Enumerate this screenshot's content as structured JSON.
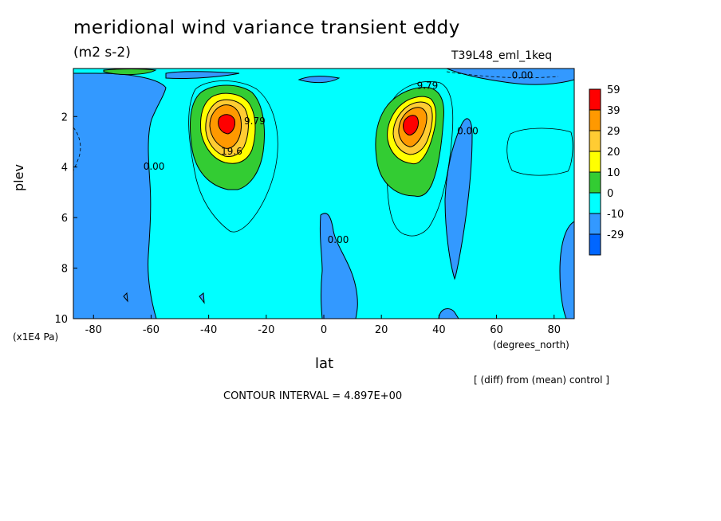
{
  "header": {
    "title": "meridional wind variance transient eddy",
    "units": "(m2 s-2)",
    "run_id": "T39L48_eml_1keq"
  },
  "footer": {
    "diff_note": "[ (diff) from (mean) control ]",
    "contour_interval": "CONTOUR INTERVAL = 4.897E+00"
  },
  "chart_data": {
    "type": "heatmap",
    "title": "meridional wind variance transient eddy",
    "subtitle": "(m2 s-2)",
    "xlabel": "lat",
    "xunit": "(degrees_north)",
    "ylabel": "plev",
    "yunit": "(x1E4 Pa)",
    "xlim": [
      -87,
      87
    ],
    "ylim": [
      10,
      0.1
    ],
    "xticks": [
      -80,
      -60,
      -40,
      -20,
      0,
      20,
      40,
      60,
      80
    ],
    "yticks": [
      2,
      4,
      6,
      8,
      10
    ],
    "xtick_labels": [
      "-80",
      "-60",
      "-40",
      "-20",
      "0",
      "20",
      "40",
      "60",
      "80"
    ],
    "ytick_labels": [
      "2",
      "4",
      "6",
      "8",
      "10"
    ],
    "contour_interval": 4.897,
    "colorbar": {
      "labels": [
        "59",
        "39",
        "29",
        "20",
        "10",
        "0",
        "-10",
        "-29"
      ],
      "colors": [
        "#ff0000",
        "#ff9900",
        "#ffcc33",
        "#ffff00",
        "#33cc33",
        "#00ffff",
        "#3399ff",
        "#0066ff"
      ]
    },
    "contour_labels": [
      {
        "text": "9.79",
        "x": -24,
        "y": 2.3
      },
      {
        "text": "19.6",
        "x": -32,
        "y": 3.5
      },
      {
        "text": "9.79",
        "x": 36,
        "y": 0.9
      },
      {
        "text": "0.00",
        "x": 69,
        "y": 0.5
      },
      {
        "text": "0.00",
        "x": 50,
        "y": 2.7
      },
      {
        "text": "0.00",
        "x": -59,
        "y": 4.1
      },
      {
        "text": "0.00",
        "x": 5,
        "y": 7.0
      }
    ],
    "regions": [
      {
        "name": "south-maximum",
        "x": -33,
        "y": 2.3,
        "peak": 59
      },
      {
        "name": "north-maximum",
        "x": 30,
        "y": 2.3,
        "peak": 59
      }
    ]
  },
  "colors": {
    "cyan": "#00ffff",
    "blue": "#3399ff",
    "green": "#33cc33",
    "yellow": "#ffff00",
    "orange": "#ff9900",
    "red": "#ff0000"
  }
}
